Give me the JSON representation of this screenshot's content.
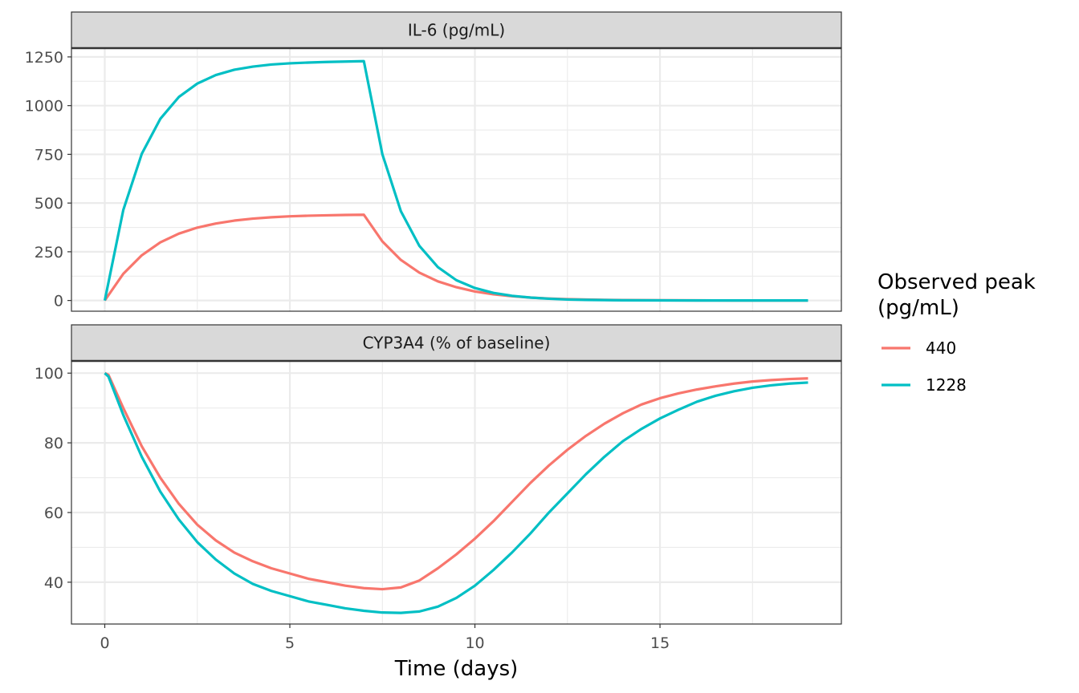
{
  "chart_data": {
    "type": "line",
    "xlabel": "Time (days)",
    "x_ticks": [
      0,
      5,
      10,
      15
    ],
    "xlim": [
      -0.9,
      19.9
    ],
    "legend": {
      "title_lines": [
        "Observed peak",
        "(pg/mL)"
      ],
      "placement": "right"
    },
    "series_styles": [
      {
        "name": "440",
        "color": "#F8766D"
      },
      {
        "name": "1228",
        "color": "#00BFC4"
      }
    ],
    "panels": [
      {
        "strip_title": "IL-6 (pg/mL)",
        "ylim": [
          -55,
          1295
        ],
        "y_ticks": [
          0,
          250,
          500,
          750,
          1000,
          1250
        ],
        "y_tick_labels": [
          "0",
          "250",
          "500",
          "750",
          "1000",
          "1250"
        ],
        "series": [
          {
            "name": "440",
            "x": [
              0,
              0.5,
              1,
              1.5,
              2,
              2.5,
              3,
              3.5,
              4,
              4.5,
              5,
              5.5,
              6,
              6.5,
              7,
              7.5,
              8,
              8.5,
              9,
              9.5,
              10,
              10.5,
              11,
              11.5,
              12,
              12.5,
              13,
              13.5,
              14,
              15,
              16,
              17,
              18,
              19
            ],
            "y": [
              0,
              137,
              232,
              298,
              343,
              374,
              395,
              410,
              420,
              427,
              432,
              435,
              437,
              439,
              440,
              303,
              208,
              143,
              98,
              68,
              46,
              32,
              22,
              15,
              10,
              7,
              5,
              3,
              2,
              1,
              0.5,
              0.2,
              0.1,
              0
            ]
          },
          {
            "name": "1228",
            "x": [
              0,
              0.5,
              1,
              1.5,
              2,
              2.5,
              3,
              3.5,
              4,
              4.5,
              5,
              5.5,
              6,
              6.5,
              7,
              7.5,
              8,
              8.5,
              9,
              9.5,
              10,
              10.5,
              11,
              11.5,
              12,
              12.5,
              13,
              13.5,
              14,
              15,
              16,
              17,
              18,
              19
            ],
            "y": [
              0,
              464,
              753,
              932,
              1044,
              1113,
              1157,
              1184,
              1200,
              1211,
              1217,
              1221,
              1224,
              1226,
              1228,
              750,
              458,
              280,
              171,
              104,
              64,
              39,
              24,
              15,
              9,
              5,
              3,
              2,
              1,
              0.5,
              0.2,
              0.1,
              0,
              0
            ]
          }
        ]
      },
      {
        "strip_title": "CYP3A4 (% of baseline)",
        "ylim": [
          28,
          103.5
        ],
        "y_ticks": [
          40,
          60,
          80,
          100
        ],
        "y_tick_labels": [
          "40",
          "60",
          "80",
          "100"
        ],
        "series": [
          {
            "name": "440",
            "x": [
              0,
              0.1,
              0.5,
              1,
              1.5,
              2,
              2.5,
              3,
              3.5,
              4,
              4.5,
              5,
              5.5,
              6,
              6.5,
              7,
              7.5,
              8,
              8.5,
              9,
              9.5,
              10,
              10.5,
              11,
              11.5,
              12,
              12.5,
              13,
              13.5,
              14,
              14.5,
              15,
              15.5,
              16,
              16.5,
              17,
              17.5,
              18,
              18.5,
              19
            ],
            "y": [
              100,
              99.5,
              90,
              79,
              70,
              62.5,
              56.5,
              52,
              48.5,
              46,
              44,
              42.5,
              41,
              40,
              39,
              38.3,
              38,
              38.5,
              40.5,
              44,
              48,
              52.5,
              57.5,
              63,
              68.5,
              73.5,
              78,
              82,
              85.5,
              88.5,
              91,
              92.8,
              94.2,
              95.3,
              96.2,
              97,
              97.6,
              98,
              98.3,
              98.5
            ]
          },
          {
            "name": "1228",
            "x": [
              0,
              0.1,
              0.5,
              1,
              1.5,
              2,
              2.5,
              3,
              3.5,
              4,
              4.5,
              5,
              5.5,
              6,
              6.5,
              7,
              7.5,
              8,
              8.5,
              9,
              9.5,
              10,
              10.5,
              11,
              11.5,
              12,
              12.5,
              13,
              13.5,
              14,
              14.5,
              15,
              15.5,
              16,
              16.5,
              17,
              17.5,
              18,
              18.5,
              19
            ],
            "y": [
              100,
              99,
              88,
              76,
              66,
              58,
              51.5,
              46.5,
              42.5,
              39.5,
              37.5,
              36,
              34.5,
              33.5,
              32.5,
              31.8,
              31.3,
              31.2,
              31.6,
              33,
              35.5,
              39,
              43.5,
              48.5,
              54,
              60,
              65.5,
              71,
              76,
              80.5,
              84,
              87,
              89.5,
              91.8,
              93.5,
              94.8,
              95.8,
              96.5,
              97,
              97.3
            ]
          }
        ]
      }
    ]
  }
}
